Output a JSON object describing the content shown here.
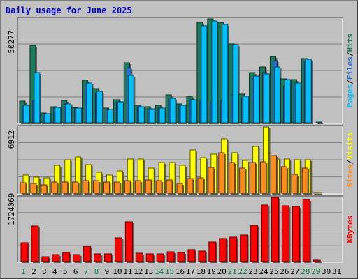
{
  "title": "Daily usage for June 2025",
  "colors": {
    "hits": "#1e7b5a",
    "files": "#1f6fd6",
    "pages": "#00bfff",
    "visits": "#ffff00",
    "sites": "#ff8c1a",
    "kbytes": "#ff0000",
    "weekend_label": "#008040",
    "weekday_label": "#000000",
    "panel_bg": "#c0c0c0",
    "grid": "#808080"
  },
  "chart_data": [
    {
      "type": "bar",
      "panel": "hits-files-pages",
      "ymax_label": "50277",
      "ylim": [
        0,
        50277
      ],
      "side_labels": [
        "Pages",
        "Files",
        "Hits"
      ],
      "categories": [
        "1",
        "2",
        "3",
        "4",
        "5",
        "6",
        "7",
        "8",
        "9",
        "10",
        "11",
        "12",
        "13",
        "14",
        "15",
        "16",
        "17",
        "18",
        "19",
        "20",
        "21",
        "22",
        "23",
        "24",
        "25",
        "26",
        "27",
        "28",
        "29",
        "30",
        "31"
      ],
      "series": [
        {
          "name": "Hits",
          "values": [
            10300,
            37600,
            4700,
            7900,
            10800,
            7500,
            20500,
            16600,
            7200,
            11300,
            29100,
            8400,
            7600,
            8400,
            13500,
            9200,
            12800,
            48700,
            50300,
            48700,
            38100,
            13900,
            24200,
            27100,
            32100,
            21400,
            20800,
            31100,
            0,
            0,
            0
          ]
        },
        {
          "name": "Files",
          "values": [
            8400,
            10800,
            4300,
            7300,
            9200,
            7100,
            18700,
            14400,
            6500,
            10000,
            26700,
            7700,
            6700,
            7200,
            11800,
            8500,
            11300,
            10300,
            10200,
            10300,
            13500,
            12100,
            21400,
            24200,
            30000,
            17600,
            18400,
            29800,
            0,
            0,
            0
          ]
        },
        {
          "name": "Pages",
          "values": [
            8400,
            24200,
            4300,
            7300,
            9200,
            7100,
            19300,
            15100,
            6500,
            10000,
            22900,
            7700,
            6700,
            7200,
            11800,
            8500,
            11300,
            46800,
            49200,
            47600,
            37800,
            12800,
            22600,
            23500,
            26900,
            20800,
            19400,
            30700,
            500,
            0,
            0
          ]
        }
      ]
    },
    {
      "type": "bar",
      "panel": "visits-sites",
      "ymax_label": "6912",
      "ylim": [
        0,
        6912
      ],
      "side_labels": [
        "Sites",
        "Visits"
      ],
      "categories": [
        "1",
        "2",
        "3",
        "4",
        "5",
        "6",
        "7",
        "8",
        "9",
        "10",
        "11",
        "12",
        "13",
        "14",
        "15",
        "16",
        "17",
        "18",
        "19",
        "20",
        "21",
        "22",
        "23",
        "24",
        "25",
        "26",
        "27",
        "28",
        "29",
        "30",
        "31"
      ],
      "series": [
        {
          "name": "Visits",
          "values": [
            1900,
            1700,
            1600,
            2900,
            3500,
            3800,
            3000,
            2200,
            1900,
            2300,
            3600,
            3600,
            2600,
            3200,
            3200,
            2900,
            4500,
            3700,
            4100,
            5700,
            4200,
            3400,
            4900,
            6900,
            3600,
            3600,
            3500,
            3500,
            100,
            0,
            0
          ]
        },
        {
          "name": "Sites",
          "values": [
            1100,
            1000,
            900,
            1200,
            1200,
            1200,
            1300,
            1300,
            1200,
            1200,
            1300,
            1300,
            1400,
            1300,
            1400,
            1000,
            1500,
            1600,
            2700,
            4200,
            3200,
            2600,
            3200,
            3300,
            3900,
            2800,
            2000,
            2600,
            100,
            0,
            0
          ]
        }
      ]
    },
    {
      "type": "bar",
      "panel": "kbytes",
      "ymax_label": "1724069",
      "ylim": [
        0,
        1724069
      ],
      "side_labels": [
        "KBytes"
      ],
      "categories": [
        "1",
        "2",
        "3",
        "4",
        "5",
        "6",
        "7",
        "8",
        "9",
        "10",
        "11",
        "12",
        "13",
        "14",
        "15",
        "16",
        "17",
        "18",
        "19",
        "20",
        "21",
        "22",
        "23",
        "24",
        "25",
        "26",
        "27",
        "28",
        "29",
        "30",
        "31"
      ],
      "series": [
        {
          "name": "KBytes",
          "values": [
            500000,
            960000,
            130000,
            180000,
            240000,
            190000,
            420000,
            210000,
            200000,
            640000,
            1060000,
            230000,
            200000,
            200000,
            260000,
            240000,
            310000,
            290000,
            520000,
            620000,
            650000,
            710000,
            980000,
            1510000,
            1724069,
            1500000,
            1480000,
            1670000,
            30000,
            0,
            0
          ]
        }
      ]
    }
  ]
}
